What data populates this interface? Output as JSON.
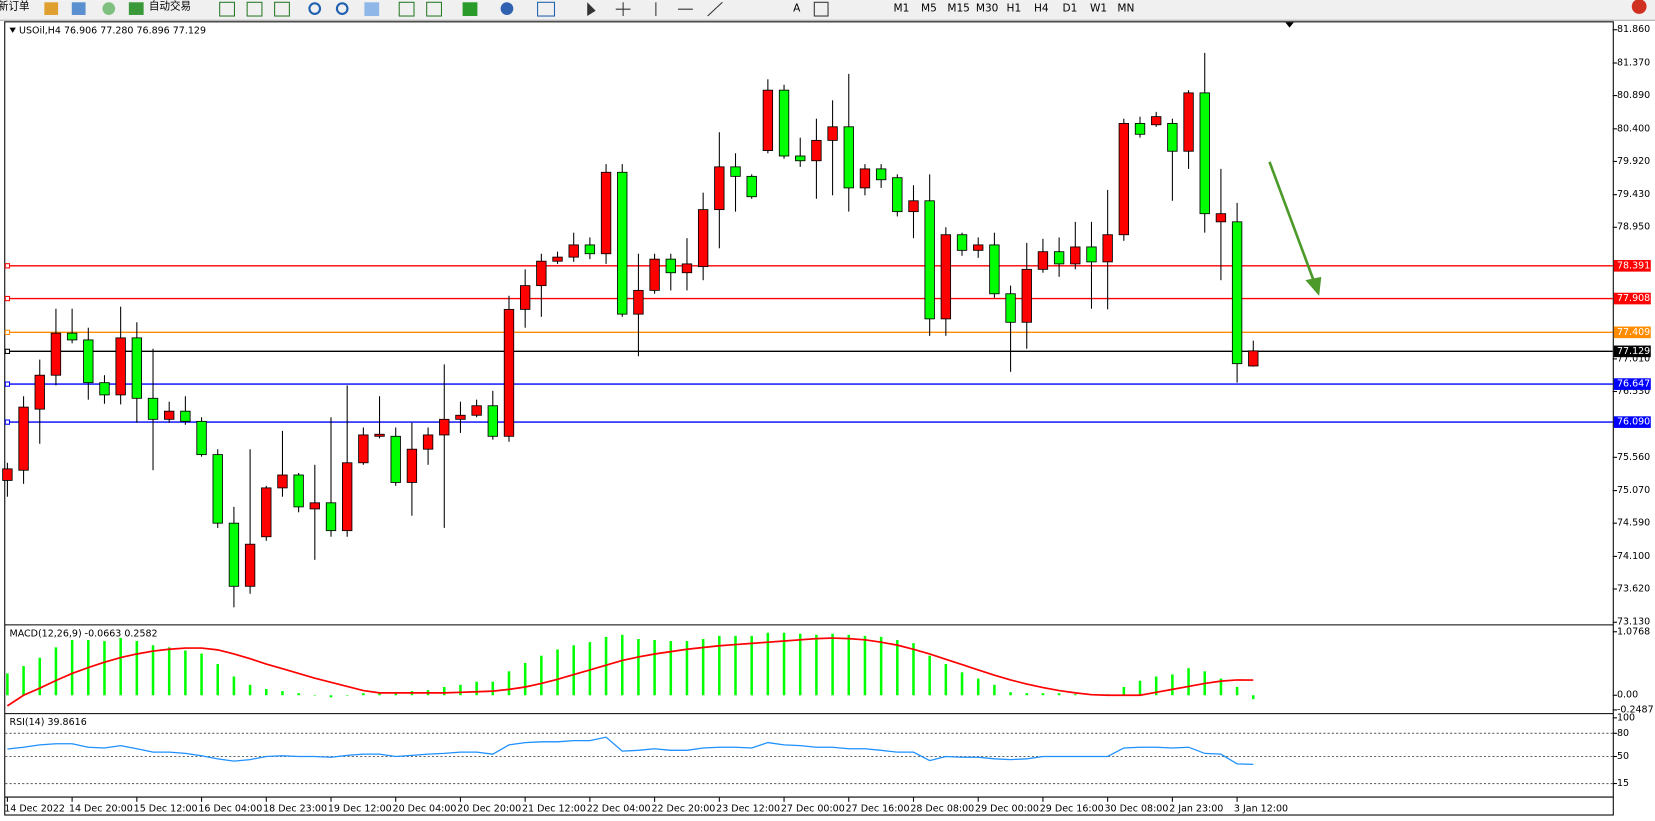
{
  "toolbar": {
    "new_order": "新订单",
    "auto_trading": "自动交易",
    "timeframes": [
      "M1",
      "M5",
      "M15",
      "M30",
      "H1",
      "H4",
      "D1",
      "W1",
      "MN"
    ]
  },
  "chart_data": [
    {
      "type": "candlestick",
      "label": "USOil,H4 76.906 77.280 76.896 77.129",
      "categories": [
        "14 Dec 2022",
        null,
        null,
        null,
        "14 Dec 20:00",
        null,
        null,
        null,
        "15 Dec 12:00",
        null,
        null,
        null,
        "16 Dec 04:00",
        null,
        null,
        null,
        "18 Dec 23:00",
        null,
        null,
        null,
        "19 Dec 12:00",
        null,
        null,
        null,
        "20 Dec 04:00",
        null,
        null,
        null,
        "20 Dec 20:00",
        null,
        null,
        null,
        "21 Dec 12:00",
        null,
        null,
        null,
        "22 Dec 04:00",
        null,
        null,
        null,
        "22 Dec 20:00",
        null,
        null,
        null,
        "23 Dec 12:00",
        null,
        null,
        null,
        "27 Dec 00:00",
        null,
        null,
        null,
        "27 Dec 16:00",
        null,
        null,
        null,
        "28 Dec 08:00",
        null,
        null,
        null,
        "29 Dec 00:00",
        null,
        null,
        null,
        "29 Dec 16:00",
        null,
        null,
        null,
        "30 Dec 08:00",
        null,
        null,
        null,
        "2 Jan 23:00",
        null,
        null,
        null,
        "3 Jan 12:00",
        null
      ],
      "open": [
        75.22,
        75.37,
        76.27,
        76.77,
        77.39,
        77.29,
        76.66,
        76.48,
        77.32,
        76.43,
        76.12,
        76.24,
        76.09,
        75.6,
        74.59,
        73.66,
        74.39,
        75.11,
        75.3,
        74.8,
        74.89,
        74.48,
        75.48,
        75.87,
        75.87,
        75.19,
        75.68,
        75.89,
        76.12,
        76.18,
        76.32,
        75.87,
        77.74,
        78.09,
        78.45,
        78.51,
        78.69,
        78.56,
        79.76,
        77.67,
        78.02,
        78.48,
        78.28,
        78.37,
        79.21,
        79.84,
        79.7,
        80.08,
        80.97,
        80.0,
        79.93,
        80.23,
        80.43,
        79.53,
        79.81,
        79.68,
        79.18,
        79.34,
        77.6,
        78.84,
        78.61,
        78.69,
        77.97,
        77.55,
        78.33,
        78.59,
        78.41,
        78.66,
        78.44,
        78.84,
        80.48,
        80.46,
        80.48,
        80.07,
        80.93,
        79.03,
        79.03,
        76.906
      ],
      "high": [
        75.48,
        76.46,
        77.0,
        77.75,
        77.75,
        77.47,
        76.77,
        77.78,
        77.55,
        77.16,
        76.38,
        76.46,
        76.15,
        75.68,
        74.83,
        75.68,
        75.14,
        75.95,
        75.33,
        75.45,
        76.15,
        76.62,
        76.0,
        76.46,
        76.0,
        76.07,
        76.0,
        76.93,
        76.38,
        76.41,
        76.54,
        77.94,
        78.33,
        78.56,
        78.59,
        78.87,
        78.8,
        79.88,
        79.88,
        78.56,
        78.56,
        78.56,
        78.79,
        79.46,
        80.35,
        80.04,
        79.73,
        81.13,
        81.05,
        80.27,
        80.55,
        80.82,
        81.21,
        79.88,
        79.88,
        79.73,
        79.57,
        79.73,
        78.95,
        78.87,
        78.8,
        78.87,
        78.09,
        78.72,
        78.78,
        78.8,
        79.03,
        79.03,
        79.5,
        80.55,
        80.58,
        80.65,
        80.55,
        80.97,
        81.52,
        79.81,
        79.31,
        77.28
      ],
      "low": [
        74.98,
        75.17,
        75.76,
        76.62,
        77.24,
        76.41,
        76.35,
        76.34,
        76.07,
        75.37,
        76.07,
        76.04,
        75.57,
        74.52,
        73.35,
        73.55,
        74.33,
        74.98,
        74.75,
        74.05,
        74.39,
        74.39,
        75.45,
        75.84,
        75.14,
        74.7,
        75.45,
        74.52,
        75.92,
        76.15,
        75.82,
        75.79,
        77.47,
        77.63,
        78.41,
        78.44,
        78.48,
        78.41,
        77.63,
        77.05,
        77.97,
        78.02,
        78.02,
        78.17,
        78.64,
        79.18,
        79.37,
        80.04,
        79.96,
        79.84,
        79.37,
        79.42,
        79.18,
        79.42,
        79.53,
        79.11,
        78.79,
        77.35,
        77.35,
        78.53,
        78.5,
        77.91,
        76.82,
        77.16,
        78.28,
        78.22,
        78.33,
        77.75,
        77.74,
        78.75,
        80.27,
        80.43,
        79.34,
        79.81,
        78.87,
        78.17,
        76.66,
        76.896
      ],
      "close": [
        75.39,
        76.3,
        76.77,
        77.39,
        77.29,
        76.66,
        76.48,
        77.32,
        76.43,
        76.12,
        76.24,
        76.09,
        75.6,
        74.59,
        73.66,
        74.28,
        75.11,
        75.3,
        74.83,
        74.89,
        74.48,
        75.48,
        75.89,
        75.9,
        75.19,
        75.68,
        75.89,
        76.12,
        76.18,
        76.32,
        75.87,
        77.74,
        78.09,
        78.45,
        78.51,
        78.69,
        78.56,
        79.76,
        77.67,
        78.02,
        78.48,
        78.28,
        78.41,
        79.21,
        79.84,
        79.7,
        79.4,
        80.97,
        80.0,
        79.93,
        80.23,
        80.43,
        79.53,
        79.81,
        79.65,
        79.18,
        79.34,
        77.6,
        78.84,
        78.61,
        78.69,
        77.97,
        77.55,
        78.33,
        78.59,
        78.41,
        78.66,
        78.44,
        78.84,
        80.48,
        80.32,
        80.58,
        80.07,
        80.93,
        79.15,
        79.15,
        76.94,
        77.129
      ],
      "up_color": "#ff0000",
      "down_color": "#00ff00",
      "ylim": [
        73.13,
        81.86
      ],
      "yticks": [
        {
          "value": 81.86,
          "label": "81.860"
        },
        {
          "value": 81.37,
          "label": "81.370"
        },
        {
          "value": 80.89,
          "label": "80.890"
        },
        {
          "value": 80.4,
          "label": "80.400"
        },
        {
          "value": 79.92,
          "label": "79.920"
        },
        {
          "value": 79.43,
          "label": "79.430"
        },
        {
          "value": 78.95,
          "label": "78.950"
        },
        {
          "value": 77.01,
          "label": "77.010"
        },
        {
          "value": 76.53,
          "label": "76.530"
        },
        {
          "value": 75.56,
          "label": "75.560"
        },
        {
          "value": 75.07,
          "label": "75.070"
        },
        {
          "value": 74.59,
          "label": "74.590"
        },
        {
          "value": 74.1,
          "label": "74.100"
        },
        {
          "value": 73.62,
          "label": "73.620"
        },
        {
          "value": 73.13,
          "label": "73.130"
        }
      ],
      "hlines": [
        {
          "value": 78.391,
          "color": "#ff0000"
        },
        {
          "value": 77.908,
          "color": "#ff0000"
        },
        {
          "value": 77.409,
          "color": "#ff8c00"
        },
        {
          "value": 77.129,
          "color": "#000000"
        },
        {
          "value": 76.647,
          "color": "#0000ff"
        },
        {
          "value": 76.09,
          "label": "76.090",
          "color": "#0000ff"
        }
      ]
    },
    {
      "type": "macd",
      "label": "MACD(12,26,9) -0.0663 0.2582",
      "ylim": [
        -0.2487,
        1.0768
      ],
      "yticks": [
        1.0768,
        {
          "value": 0,
          "label": "0.00"
        },
        -0.2487
      ],
      "series": [
        {
          "color": "#00ff00",
          "style": "histogram",
          "values": [
            0.371,
            0.495,
            0.636,
            0.813,
            0.937,
            0.937,
            0.919,
            0.972,
            0.919,
            0.848,
            0.813,
            0.76,
            0.707,
            0.53,
            0.318,
            0.177,
            0.106,
            0.071,
            0.035,
            0,
            -0.035,
            0,
            0.035,
            0.053,
            0.053,
            0.071,
            0.088,
            0.141,
            0.177,
            0.23,
            0.23,
            0.406,
            0.548,
            0.671,
            0.777,
            0.848,
            0.901,
            0.99,
            1.025,
            0.954,
            0.937,
            0.919,
            0.919,
            0.954,
            1.007,
            1.007,
            1.007,
            1.06,
            1.06,
            1.043,
            1.025,
            1.043,
            1.025,
            1.007,
            0.99,
            0.937,
            0.884,
            0.671,
            0.53,
            0.389,
            0.283,
            0.177,
            0.053,
            0.035,
            0.035,
            0.035,
            0.018,
            0.018,
            0.018,
            0.141,
            0.247,
            0.318,
            0.353,
            0.459,
            0.406,
            0.283,
            0.141,
            -0.0663
          ]
        },
        {
          "color": "#ff0000",
          "style": "line",
          "values": [
            -0.18,
            0,
            0.12,
            0.25,
            0.37,
            0.47,
            0.56,
            0.64,
            0.7,
            0.75,
            0.78,
            0.8,
            0.8,
            0.77,
            0.7,
            0.62,
            0.53,
            0.45,
            0.37,
            0.29,
            0.22,
            0.15,
            0.08,
            0.04,
            0.04,
            0.04,
            0.04,
            0.04,
            0.05,
            0.06,
            0.07,
            0.1,
            0.14,
            0.2,
            0.27,
            0.35,
            0.43,
            0.51,
            0.59,
            0.65,
            0.7,
            0.74,
            0.78,
            0.81,
            0.84,
            0.86,
            0.88,
            0.9,
            0.92,
            0.94,
            0.96,
            0.97,
            0.96,
            0.94,
            0.9,
            0.85,
            0.78,
            0.7,
            0.61,
            0.52,
            0.43,
            0.34,
            0.26,
            0.19,
            0.13,
            0.08,
            0.04,
            0.01,
            0,
            0,
            0,
            0.05,
            0.1,
            0.15,
            0.2,
            0.24,
            0.26,
            0.2582
          ]
        }
      ]
    },
    {
      "type": "line",
      "label": "RSI(14) 39.8616",
      "ylim": [
        0,
        100
      ],
      "yticks": [
        100,
        80,
        50,
        15
      ],
      "levels": [
        80,
        50,
        15
      ],
      "series": [
        {
          "color": "#1e90ff",
          "values": [
            59.7,
            62,
            65,
            66.5,
            66.5,
            62,
            61,
            64,
            60,
            55.6,
            55.6,
            54,
            51,
            47,
            44,
            46,
            50,
            51,
            50,
            50,
            49,
            51.5,
            53,
            53,
            50,
            51.5,
            53,
            54,
            55.6,
            55.6,
            53,
            65,
            68,
            69,
            69,
            70.5,
            70.5,
            75,
            57,
            58,
            60,
            58,
            58,
            61,
            62,
            62,
            61,
            68,
            65,
            64,
            62,
            62,
            60,
            60,
            58,
            55.6,
            55.6,
            44.7,
            50,
            49,
            49,
            47,
            46,
            47,
            50,
            50,
            50,
            50,
            50,
            61,
            62,
            62,
            61,
            62,
            54,
            53,
            40.5,
            39.8616
          ]
        }
      ]
    }
  ]
}
